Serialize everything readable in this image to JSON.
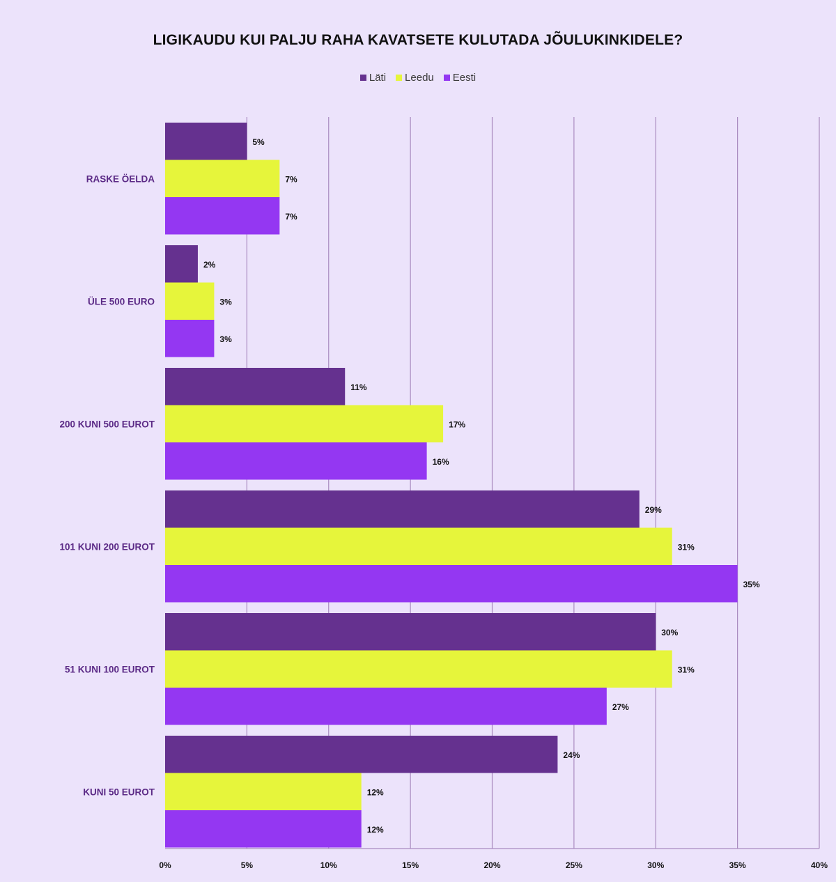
{
  "chart_data": {
    "type": "bar",
    "orientation": "horizontal",
    "title": "LIGIKAUDU KUI PALJU RAHA KAVATSETE KULUTADA JÕULUKINKIDELE?",
    "categories": [
      "RASKE ÖELDA",
      "ÜLE 500 EURO",
      "200 KUNI 500 EUROT",
      "101 KUNI 200 EUROT",
      "51 KUNI 100 EUROT",
      "KUNI 50 EUROT"
    ],
    "series": [
      {
        "name": "Läti",
        "color": "#65318f",
        "values": [
          5,
          2,
          11,
          29,
          30,
          24
        ]
      },
      {
        "name": "Leedu",
        "color": "#e6f53b",
        "values": [
          7,
          3,
          17,
          31,
          31,
          12
        ]
      },
      {
        "name": "Eesti",
        "color": "#9437f2",
        "values": [
          7,
          3,
          16,
          35,
          27,
          12
        ]
      }
    ],
    "xlim": [
      0,
      40
    ],
    "xticks": [
      0,
      5,
      10,
      15,
      20,
      25,
      30,
      35,
      40
    ],
    "tick_suffix": "%",
    "value_suffix": "%",
    "grid": true,
    "legend_position": "top-center",
    "category_label_color": "#5b2a86"
  }
}
